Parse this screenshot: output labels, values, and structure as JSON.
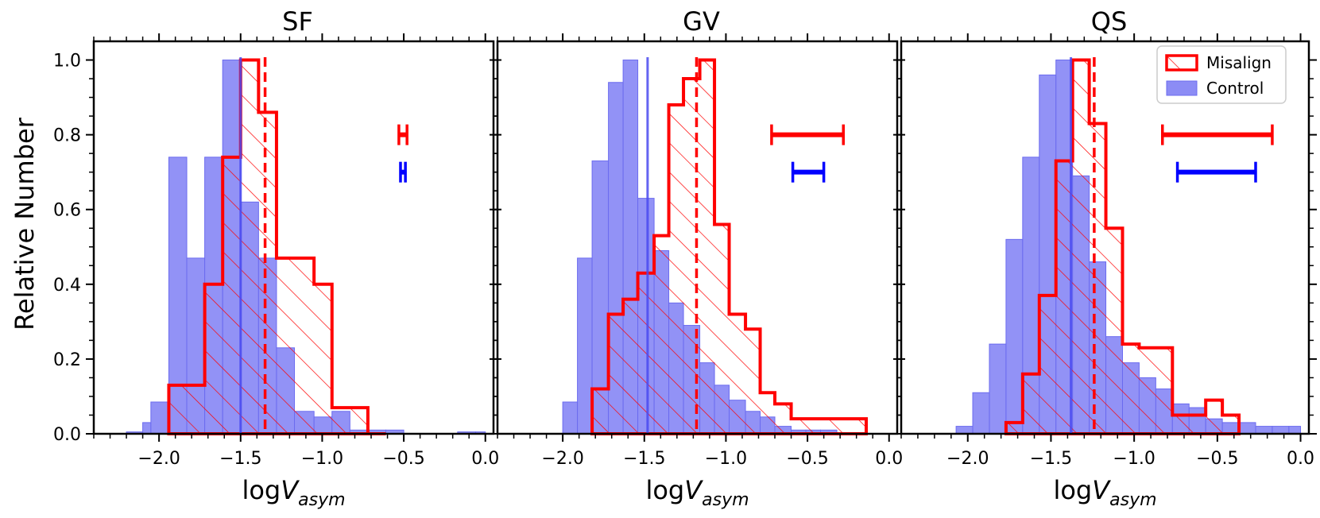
{
  "figure": {
    "ylabel": "Relative Number",
    "xlabel_prefix": "log",
    "xlabel_var": "V",
    "xlabel_sub": "asym",
    "colors": {
      "misalign": "#ff0000",
      "control_fill": "#8c8cf5",
      "control_edge": "#6b6bef",
      "control_line": "#4a4af0",
      "error_blue": "#0000ff"
    },
    "legend": {
      "position": "top-right",
      "panel": 2,
      "misalign_label": "Misalign",
      "control_label": "Control"
    }
  },
  "chart_data": [
    {
      "type": "histogram",
      "title": "SF",
      "xlabel": "logV_asym",
      "ylabel": "Relative Number",
      "xlim": [
        -2.4,
        0.05
      ],
      "ylim": [
        0,
        1.05
      ],
      "xticks": [
        -2.0,
        -1.5,
        -1.0,
        -0.5,
        0.0
      ],
      "xtick_labels": [
        "−2.0",
        "−1.5",
        "−1.0",
        "−0.5",
        "0.0"
      ],
      "yticks": [
        0.0,
        0.2,
        0.4,
        0.6,
        0.8,
        1.0
      ],
      "ytick_labels": [
        "0.0",
        "0.2",
        "0.4",
        "0.6",
        "0.8",
        "1.0"
      ],
      "bins": [
        -2.2,
        -2.1,
        -2.05,
        -1.94,
        -1.83,
        -1.72,
        -1.61,
        -1.5,
        -1.39,
        -1.28,
        -1.17,
        -1.05,
        -0.94,
        -0.83,
        -0.72,
        -0.61,
        -0.5,
        -0.39,
        -0.28,
        -0.17,
        -0.06,
        0.0
      ],
      "control": [
        0.005,
        0.03,
        0.085,
        0.74,
        0.47,
        0.74,
        1.0,
        0.62,
        0.47,
        0.23,
        0.06,
        0.045,
        0.06,
        0.01,
        0.01,
        0.01,
        0.0,
        0.0,
        0.0,
        0.005,
        0.005
      ],
      "misalign_bins": [
        -1.94,
        -1.72,
        -1.61,
        -1.5,
        -1.39,
        -1.28,
        -1.17,
        -1.05,
        -0.94,
        -0.83,
        -0.72,
        -0.61
      ],
      "misalign": [
        0.13,
        0.4,
        0.74,
        1.0,
        0.86,
        0.47,
        0.47,
        0.4,
        0.07,
        0.07,
        0.0
      ],
      "control_median": -1.5,
      "misalign_median": -1.35,
      "errorbars": [
        {
          "series": "Misalign",
          "y": 0.8,
          "xmin": -0.53,
          "xmax": -0.48
        },
        {
          "series": "Control",
          "y": 0.7,
          "xmin": -0.52,
          "xmax": -0.49
        }
      ]
    },
    {
      "type": "histogram",
      "title": "GV",
      "xlabel": "logV_asym",
      "ylabel": "",
      "xlim": [
        -2.4,
        0.05
      ],
      "ylim": [
        0,
        1.05
      ],
      "xticks": [
        -2.0,
        -1.5,
        -1.0,
        -0.5,
        0.0
      ],
      "xtick_labels": [
        "−2.0",
        "−1.5",
        "−1.0",
        "−0.5",
        "0.0"
      ],
      "bins": [
        -2.0,
        -1.91,
        -1.82,
        -1.72,
        -1.63,
        -1.54,
        -1.44,
        -1.35,
        -1.26,
        -1.16,
        -1.07,
        -0.98,
        -0.88,
        -0.79,
        -0.7,
        -0.6,
        -0.51,
        -0.42,
        -0.32,
        -0.23
      ],
      "control": [
        0.085,
        0.47,
        0.73,
        0.94,
        1.0,
        0.63,
        0.49,
        0.35,
        0.29,
        0.19,
        0.13,
        0.09,
        0.06,
        0.045,
        0.02,
        0.01,
        0.01,
        0.01,
        0.0
      ],
      "misalign_bins": [
        -1.82,
        -1.72,
        -1.63,
        -1.54,
        -1.44,
        -1.35,
        -1.26,
        -1.16,
        -1.07,
        -0.98,
        -0.88,
        -0.79,
        -0.7,
        -0.6,
        -0.51,
        -0.42,
        -0.32,
        -0.23,
        -0.14
      ],
      "misalign": [
        0.12,
        0.32,
        0.36,
        0.43,
        0.53,
        0.88,
        0.95,
        1.0,
        0.56,
        0.32,
        0.28,
        0.11,
        0.08,
        0.04,
        0.04,
        0.04,
        0.04,
        0.04
      ],
      "control_median": -1.48,
      "misalign_median": -1.18,
      "errorbars": [
        {
          "series": "Misalign",
          "y": 0.8,
          "xmin": -0.72,
          "xmax": -0.28
        },
        {
          "series": "Control",
          "y": 0.7,
          "xmin": -0.59,
          "xmax": -0.4
        }
      ]
    },
    {
      "type": "histogram",
      "title": "QS",
      "xlabel": "logV_asym",
      "ylabel": "",
      "xlim": [
        -2.4,
        0.05
      ],
      "ylim": [
        0,
        1.05
      ],
      "xticks": [
        -2.0,
        -1.5,
        -1.0,
        -0.5,
        0.0
      ],
      "xtick_labels": [
        "−2.0",
        "−1.5",
        "−1.0",
        "−0.5",
        "0.0"
      ],
      "bins": [
        -2.07,
        -1.97,
        -1.87,
        -1.77,
        -1.67,
        -1.57,
        -1.47,
        -1.37,
        -1.27,
        -1.17,
        -1.07,
        -0.97,
        -0.87,
        -0.77,
        -0.67,
        -0.57,
        -0.47,
        -0.37,
        -0.27,
        -0.17,
        -0.07,
        0.0
      ],
      "control": [
        0.02,
        0.11,
        0.24,
        0.52,
        0.74,
        0.96,
        1.0,
        0.69,
        0.46,
        0.26,
        0.19,
        0.15,
        0.12,
        0.08,
        0.07,
        0.04,
        0.03,
        0.03,
        0.02,
        0.02,
        0.02
      ],
      "misalign_bins": [
        -1.77,
        -1.67,
        -1.57,
        -1.47,
        -1.37,
        -1.27,
        -1.17,
        -1.07,
        -0.97,
        -0.87,
        -0.77,
        -0.67,
        -0.57,
        -0.47,
        -0.37
      ],
      "misalign": [
        0.03,
        0.16,
        0.37,
        0.73,
        1.0,
        0.83,
        0.55,
        0.24,
        0.23,
        0.23,
        0.05,
        0.05,
        0.09,
        0.05
      ],
      "control_median": -1.38,
      "misalign_median": -1.24,
      "errorbars": [
        {
          "series": "Misalign",
          "y": 0.8,
          "xmin": -0.83,
          "xmax": -0.17
        },
        {
          "series": "Control",
          "y": 0.7,
          "xmin": -0.74,
          "xmax": -0.27
        }
      ]
    }
  ]
}
